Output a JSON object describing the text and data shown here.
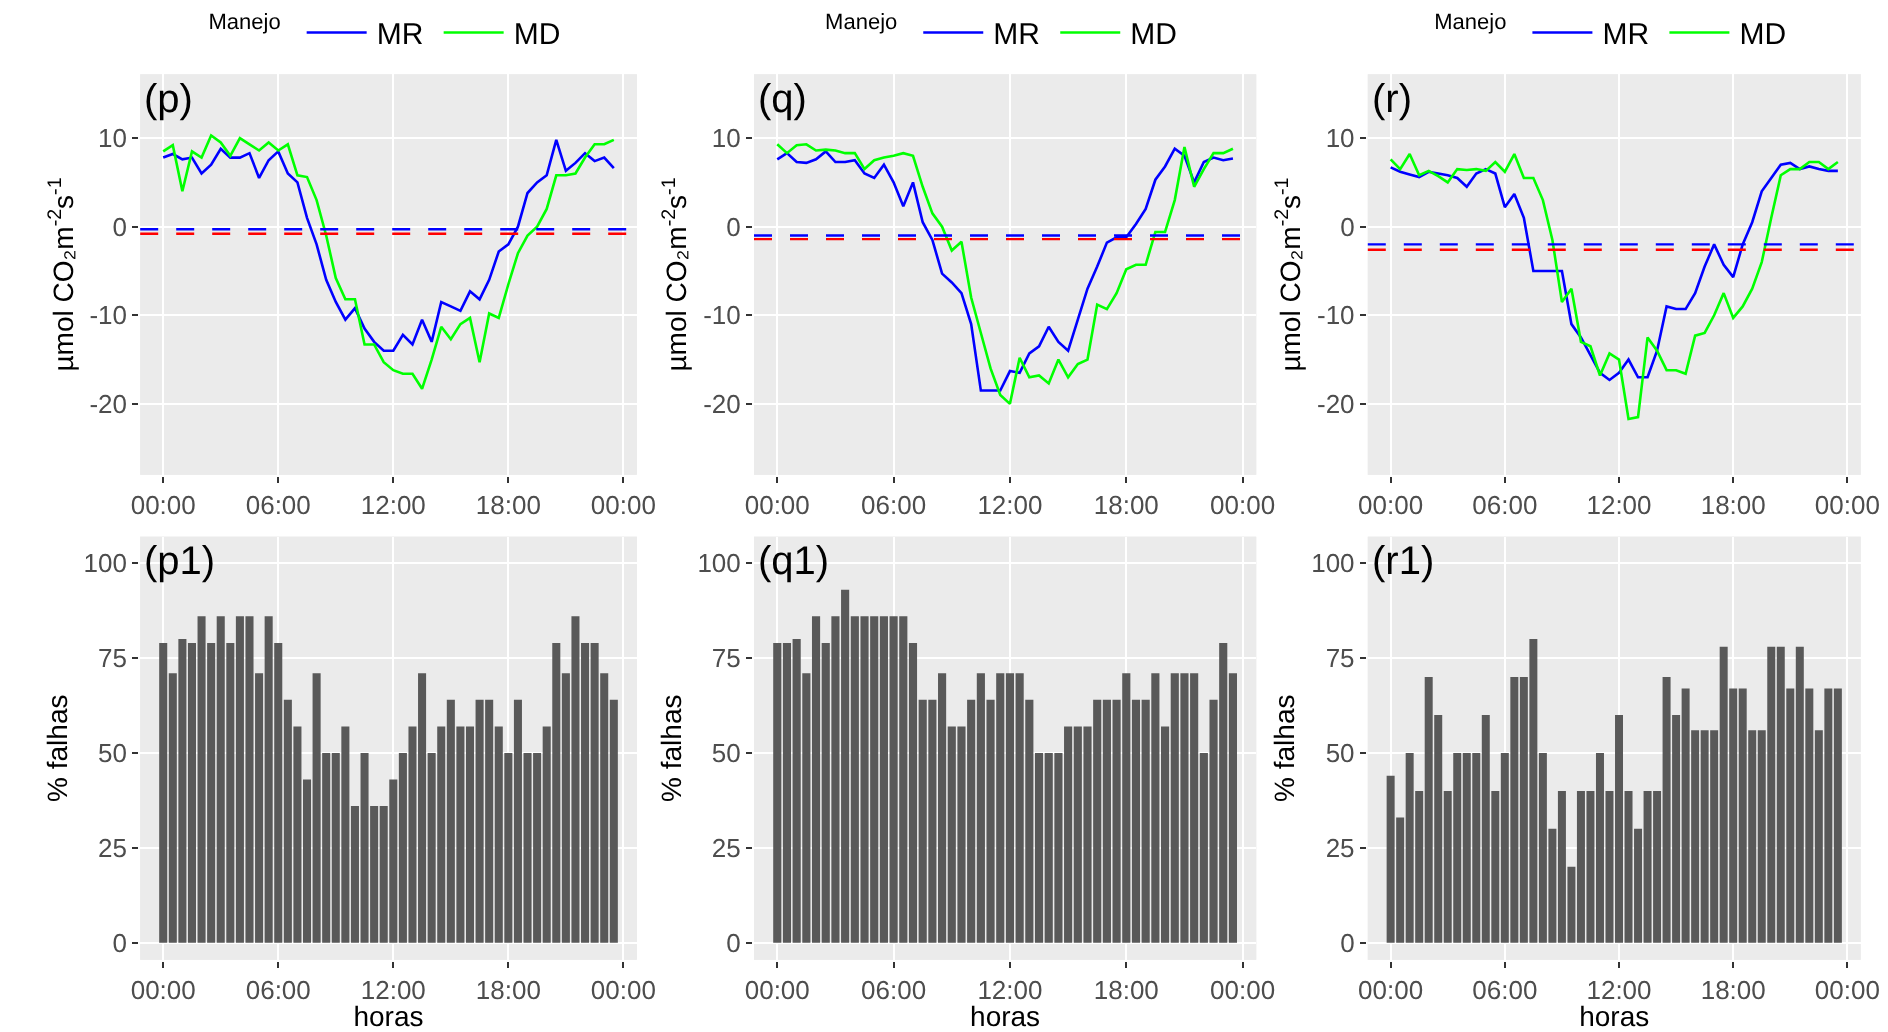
{
  "chart_data": [
    {
      "type": "line",
      "title": "(p)",
      "ylabel": "µmol CO₂m$^{-2}$s$^{-1}$",
      "legend_title": "Manejo",
      "legend": "top",
      "grid": true,
      "x": [
        0,
        0.5,
        1,
        1.5,
        2,
        2.5,
        3,
        3.5,
        4,
        4.5,
        5,
        5.5,
        6,
        6.5,
        7,
        7.5,
        8,
        8.5,
        9,
        9.5,
        10,
        10.5,
        11,
        11.5,
        12,
        12.5,
        13,
        13.5,
        14,
        14.5,
        15,
        15.5,
        16,
        16.5,
        17,
        17.5,
        18,
        18.5,
        19,
        19.5,
        20,
        20.5,
        21,
        21.5,
        22,
        22.5,
        23,
        23.5
      ],
      "xlim": [
        -1.2,
        24.7
      ],
      "xticks": [
        {
          "value": 0,
          "label": "00:00"
        },
        {
          "value": 6,
          "label": "06:00"
        },
        {
          "value": 12,
          "label": "12:00"
        },
        {
          "value": 18,
          "label": "18:00"
        },
        {
          "value": 24,
          "label": "00:00"
        }
      ],
      "ylim": [
        -28,
        17.2
      ],
      "yticks": [
        -20,
        -10,
        0,
        10
      ],
      "series": [
        {
          "name": "MR",
          "color": "#0000ff",
          "values": [
            7.8,
            8.2,
            7.6,
            7.8,
            6.0,
            7.0,
            8.8,
            7.8,
            7.8,
            8.3,
            5.5,
            7.5,
            8.5,
            6.0,
            5.0,
            1.0,
            -2.0,
            -6.0,
            -8.5,
            -10.5,
            -9.2,
            -11.5,
            -13.0,
            -14.0,
            -14.0,
            -12.2,
            -13.3,
            -10.5,
            -13.0,
            -8.5,
            -9.0,
            -9.5,
            -7.3,
            -8.2,
            -6.0,
            -2.8,
            -2.0,
            0.0,
            3.8,
            5.0,
            5.8,
            9.8,
            6.3,
            7.2,
            8.3,
            7.4,
            7.8,
            6.6
          ]
        },
        {
          "name": "MD",
          "color": "#00ff00",
          "values": [
            8.5,
            9.2,
            4.0,
            8.5,
            7.8,
            10.3,
            9.5,
            8.0,
            10.0,
            9.3,
            8.6,
            9.5,
            8.6,
            9.3,
            5.8,
            5.6,
            3.0,
            -1.0,
            -5.8,
            -8.2,
            -8.2,
            -13.3,
            -13.3,
            -15.3,
            -16.2,
            -16.6,
            -16.6,
            -18.3,
            -15.0,
            -11.3,
            -12.7,
            -11.0,
            -10.3,
            -15.3,
            -9.8,
            -10.3,
            -6.5,
            -3.0,
            -1.0,
            0.0,
            2.0,
            5.8,
            5.8,
            6.0,
            7.8,
            9.3,
            9.3,
            9.8
          ]
        }
      ],
      "ref_lines": [
        {
          "axis": "y",
          "value": -0.3,
          "color": "#0000ff",
          "line_style": "dashed"
        },
        {
          "axis": "y",
          "value": -0.8,
          "color": "#ff0000",
          "line_style": "dashed"
        }
      ]
    },
    {
      "type": "line",
      "title": "(q)",
      "ylabel": "µmol CO₂m$^{-2}$s$^{-1}$",
      "legend_title": "Manejo",
      "legend": "top",
      "grid": true,
      "x": [
        0,
        0.5,
        1,
        1.5,
        2,
        2.5,
        3,
        3.5,
        4,
        4.5,
        5,
        5.5,
        6,
        6.5,
        7,
        7.5,
        8,
        8.5,
        9,
        9.5,
        10,
        10.5,
        11,
        11.5,
        12,
        12.5,
        13,
        13.5,
        14,
        14.5,
        15,
        15.5,
        16,
        16.5,
        17,
        17.5,
        18,
        18.5,
        19,
        19.5,
        20,
        20.5,
        21,
        21.5,
        22,
        22.5,
        23,
        23.5
      ],
      "xlim": [
        -1.2,
        24.7
      ],
      "xticks": [
        {
          "value": 0,
          "label": "00:00"
        },
        {
          "value": 6,
          "label": "06:00"
        },
        {
          "value": 12,
          "label": "12:00"
        },
        {
          "value": 18,
          "label": "18:00"
        },
        {
          "value": 24,
          "label": "00:00"
        }
      ],
      "ylim": [
        -28,
        17.2
      ],
      "yticks": [
        -20,
        -10,
        0,
        10
      ],
      "series": [
        {
          "name": "MR",
          "color": "#0000ff",
          "values": [
            7.6,
            8.3,
            7.3,
            7.2,
            7.6,
            8.5,
            7.3,
            7.3,
            7.5,
            6.0,
            5.5,
            7.0,
            5.0,
            2.3,
            5.0,
            0.5,
            -1.5,
            -5.3,
            -6.3,
            -7.5,
            -11.0,
            -18.5,
            -18.5,
            -18.5,
            -16.3,
            -16.5,
            -14.3,
            -13.5,
            -11.3,
            -13.0,
            -14.0,
            -10.5,
            -7.0,
            -4.5,
            -1.8,
            -1.2,
            -1.2,
            0.3,
            2.0,
            5.3,
            6.8,
            8.8,
            8.0,
            5.0,
            7.3,
            7.8,
            7.5,
            7.7
          ]
        },
        {
          "name": "MD",
          "color": "#00ff00",
          "values": [
            9.3,
            8.3,
            9.2,
            9.3,
            8.6,
            8.7,
            8.6,
            8.3,
            8.3,
            6.5,
            7.5,
            7.8,
            8.0,
            8.3,
            8.0,
            4.5,
            1.5,
            0.0,
            -2.7,
            -1.7,
            -8.0,
            -12.0,
            -16.0,
            -19.0,
            -20.0,
            -14.8,
            -17.0,
            -16.8,
            -17.7,
            -15.0,
            -17.0,
            -15.5,
            -15.0,
            -8.8,
            -9.3,
            -7.5,
            -4.8,
            -4.3,
            -4.3,
            -0.6,
            -0.6,
            3.0,
            9.0,
            4.5,
            6.5,
            8.3,
            8.3,
            8.8
          ]
        }
      ],
      "ref_lines": [
        {
          "axis": "y",
          "value": -1.0,
          "color": "#0000ff",
          "line_style": "dashed"
        },
        {
          "axis": "y",
          "value": -1.4,
          "color": "#ff0000",
          "line_style": "dashed"
        }
      ]
    },
    {
      "type": "line",
      "title": "(r)",
      "ylabel": "µmol CO₂m$^{-2}$s$^{-1}$",
      "legend_title": "Manejo",
      "legend": "top",
      "grid": true,
      "x": [
        0,
        0.5,
        1,
        1.5,
        2,
        2.5,
        3,
        3.5,
        4,
        4.5,
        5,
        5.5,
        6,
        6.5,
        7,
        7.5,
        8,
        8.5,
        9,
        9.5,
        10,
        10.5,
        11,
        11.5,
        12,
        12.5,
        13,
        13.5,
        14,
        14.5,
        15,
        15.5,
        16,
        16.5,
        17,
        17.5,
        18,
        18.5,
        19,
        19.5,
        20,
        20.5,
        21,
        21.5,
        22,
        22.5,
        23,
        23.5
      ],
      "xlim": [
        -1.2,
        24.7
      ],
      "xticks": [
        {
          "value": 0,
          "label": "00:00"
        },
        {
          "value": 6,
          "label": "06:00"
        },
        {
          "value": 12,
          "label": "12:00"
        },
        {
          "value": 18,
          "label": "18:00"
        },
        {
          "value": 24,
          "label": "00:00"
        }
      ],
      "ylim": [
        -28,
        17.2
      ],
      "yticks": [
        -20,
        -10,
        0,
        10
      ],
      "series": [
        {
          "name": "MR",
          "color": "#0000ff",
          "values": [
            6.7,
            6.2,
            5.9,
            5.6,
            6.2,
            6.0,
            5.8,
            5.5,
            4.5,
            6.0,
            6.5,
            6.0,
            2.2,
            3.7,
            1.0,
            -5.0,
            -5.0,
            -5.0,
            -5.0,
            -11.0,
            -12.5,
            -14.5,
            -16.5,
            -17.3,
            -16.5,
            -15.0,
            -17.0,
            -17.0,
            -14.0,
            -9.0,
            -9.3,
            -9.3,
            -7.5,
            -4.5,
            -2.0,
            -4.3,
            -5.7,
            -2.0,
            0.5,
            4.0,
            5.5,
            7.0,
            7.2,
            6.5,
            6.8,
            6.5,
            6.3,
            6.3
          ]
        },
        {
          "name": "MD",
          "color": "#00ff00",
          "values": [
            7.6,
            6.5,
            8.2,
            5.8,
            6.3,
            5.7,
            5.0,
            6.5,
            6.4,
            6.5,
            6.3,
            7.3,
            6.2,
            8.2,
            5.5,
            5.5,
            3.0,
            -1.5,
            -8.5,
            -7.0,
            -13.0,
            -13.5,
            -16.8,
            -14.3,
            -15.0,
            -21.7,
            -21.5,
            -12.5,
            -14.0,
            -16.2,
            -16.2,
            -16.6,
            -12.3,
            -12.0,
            -10.0,
            -7.5,
            -10.3,
            -9.0,
            -7.0,
            -4.0,
            1.0,
            5.8,
            6.5,
            6.5,
            7.3,
            7.3,
            6.5,
            7.3
          ]
        }
      ],
      "ref_lines": [
        {
          "axis": "y",
          "value": -2.0,
          "color": "#0000ff",
          "line_style": "dashed"
        },
        {
          "axis": "y",
          "value": -2.6,
          "color": "#ff0000",
          "line_style": "dashed"
        }
      ]
    },
    {
      "type": "bar",
      "title": "(p1)",
      "xlabel": "horas",
      "ylabel": "% falhas",
      "grid": true,
      "x": [
        0,
        0.5,
        1,
        1.5,
        2,
        2.5,
        3,
        3.5,
        4,
        4.5,
        5,
        5.5,
        6,
        6.5,
        7,
        7.5,
        8,
        8.5,
        9,
        9.5,
        10,
        10.5,
        11,
        11.5,
        12,
        12.5,
        13,
        13.5,
        14,
        14.5,
        15,
        15.5,
        16,
        16.5,
        17,
        17.5,
        18,
        18.5,
        19,
        19.5,
        20,
        20.5,
        21,
        21.5,
        22,
        22.5,
        23,
        23.5
      ],
      "xlim": [
        -1.2,
        24.7
      ],
      "xticks": [
        {
          "value": 0,
          "label": "00:00"
        },
        {
          "value": 6,
          "label": "06:00"
        },
        {
          "value": 12,
          "label": "12:00"
        },
        {
          "value": 18,
          "label": "18:00"
        },
        {
          "value": 24,
          "label": "00:00"
        }
      ],
      "ylim": [
        -4.5,
        107
      ],
      "yticks": [
        0,
        25,
        50,
        75,
        100
      ],
      "color": "#595959",
      "values": [
        79,
        71,
        80,
        79,
        86,
        79,
        86,
        79,
        86,
        86,
        71,
        86,
        79,
        64,
        57,
        43,
        71,
        50,
        50,
        57,
        36,
        50,
        36,
        36,
        43,
        50,
        57,
        71,
        50,
        57,
        64,
        57,
        57,
        64,
        64,
        57,
        50,
        64,
        50,
        50,
        57,
        79,
        71,
        86,
        79,
        79,
        71,
        64
      ]
    },
    {
      "type": "bar",
      "title": "(q1)",
      "xlabel": "horas",
      "ylabel": "% falhas",
      "grid": true,
      "x": [
        0,
        0.5,
        1,
        1.5,
        2,
        2.5,
        3,
        3.5,
        4,
        4.5,
        5,
        5.5,
        6,
        6.5,
        7,
        7.5,
        8,
        8.5,
        9,
        9.5,
        10,
        10.5,
        11,
        11.5,
        12,
        12.5,
        13,
        13.5,
        14,
        14.5,
        15,
        15.5,
        16,
        16.5,
        17,
        17.5,
        18,
        18.5,
        19,
        19.5,
        20,
        20.5,
        21,
        21.5,
        22,
        22.5,
        23,
        23.5
      ],
      "xlim": [
        -1.2,
        24.7
      ],
      "xticks": [
        {
          "value": 0,
          "label": "00:00"
        },
        {
          "value": 6,
          "label": "06:00"
        },
        {
          "value": 12,
          "label": "12:00"
        },
        {
          "value": 18,
          "label": "18:00"
        },
        {
          "value": 24,
          "label": "00:00"
        }
      ],
      "ylim": [
        -4.5,
        107
      ],
      "yticks": [
        0,
        25,
        50,
        75,
        100
      ],
      "color": "#595959",
      "values": [
        79,
        79,
        80,
        71,
        86,
        79,
        86,
        93,
        86,
        86,
        86,
        86,
        86,
        86,
        79,
        64,
        64,
        71,
        57,
        57,
        64,
        71,
        64,
        71,
        71,
        71,
        64,
        50,
        50,
        50,
        57,
        57,
        57,
        64,
        64,
        64,
        71,
        64,
        64,
        71,
        57,
        71,
        71,
        71,
        50,
        64,
        79,
        71
      ]
    },
    {
      "type": "bar",
      "title": "(r1)",
      "xlabel": "horas",
      "ylabel": "% falhas",
      "grid": true,
      "x": [
        0,
        0.5,
        1,
        1.5,
        2,
        2.5,
        3,
        3.5,
        4,
        4.5,
        5,
        5.5,
        6,
        6.5,
        7,
        7.5,
        8,
        8.5,
        9,
        9.5,
        10,
        10.5,
        11,
        11.5,
        12,
        12.5,
        13,
        13.5,
        14,
        14.5,
        15,
        15.5,
        16,
        16.5,
        17,
        17.5,
        18,
        18.5,
        19,
        19.5,
        20,
        20.5,
        21,
        21.5,
        22,
        22.5,
        23,
        23.5
      ],
      "xlim": [
        -1.2,
        24.7
      ],
      "xticks": [
        {
          "value": 0,
          "label": "00:00"
        },
        {
          "value": 6,
          "label": "06:00"
        },
        {
          "value": 12,
          "label": "12:00"
        },
        {
          "value": 18,
          "label": "18:00"
        },
        {
          "value": 24,
          "label": "00:00"
        }
      ],
      "ylim": [
        -4.5,
        107
      ],
      "yticks": [
        0,
        25,
        50,
        75,
        100
      ],
      "color": "#595959",
      "values": [
        44,
        33,
        50,
        40,
        70,
        60,
        40,
        50,
        50,
        50,
        60,
        40,
        50,
        70,
        70,
        80,
        50,
        30,
        40,
        20,
        40,
        40,
        50,
        40,
        60,
        40,
        30,
        40,
        40,
        70,
        60,
        67,
        56,
        56,
        56,
        78,
        67,
        67,
        56,
        56,
        78,
        78,
        67,
        78,
        67,
        56,
        67,
        67
      ]
    }
  ]
}
